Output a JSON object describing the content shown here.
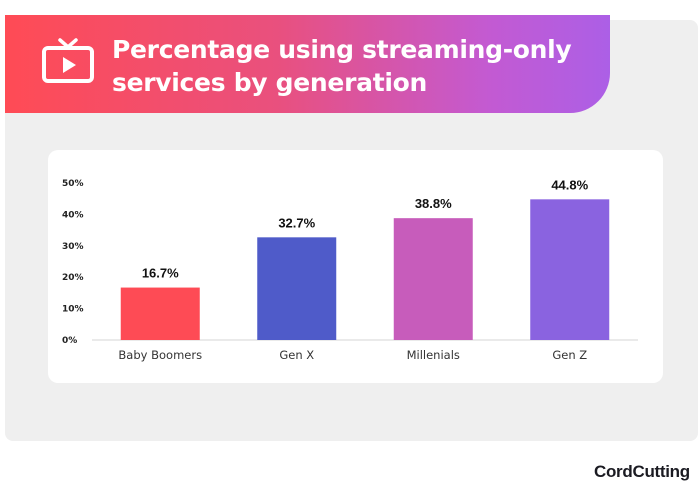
{
  "header": {
    "title_line1": "Percentage using streaming-only",
    "title_line2": "services by generation",
    "icon": "tv-play-icon",
    "gradient": [
      "#ff4b55",
      "#ac5fe6"
    ]
  },
  "brand": {
    "logo_text": "CordCutting"
  },
  "chart_data": {
    "type": "bar",
    "categories": [
      "Baby Boomers",
      "Gen X",
      "Millenials",
      "Gen Z"
    ],
    "values": [
      16.7,
      32.7,
      38.8,
      44.8
    ],
    "data_labels": [
      "16.7%",
      "32.7%",
      "38.8%",
      "44.8%"
    ],
    "colors": [
      "#fe4b55",
      "#4f5bc9",
      "#c75cbb",
      "#8a63e0"
    ],
    "yticks": [
      0,
      10,
      20,
      30,
      40,
      50
    ],
    "ytick_labels": [
      "0%",
      "10%",
      "20%",
      "30%",
      "40%",
      "50%"
    ],
    "ylim": [
      0,
      50
    ],
    "title": "",
    "xlabel": "",
    "ylabel": "",
    "grid": false,
    "legend": "none"
  }
}
